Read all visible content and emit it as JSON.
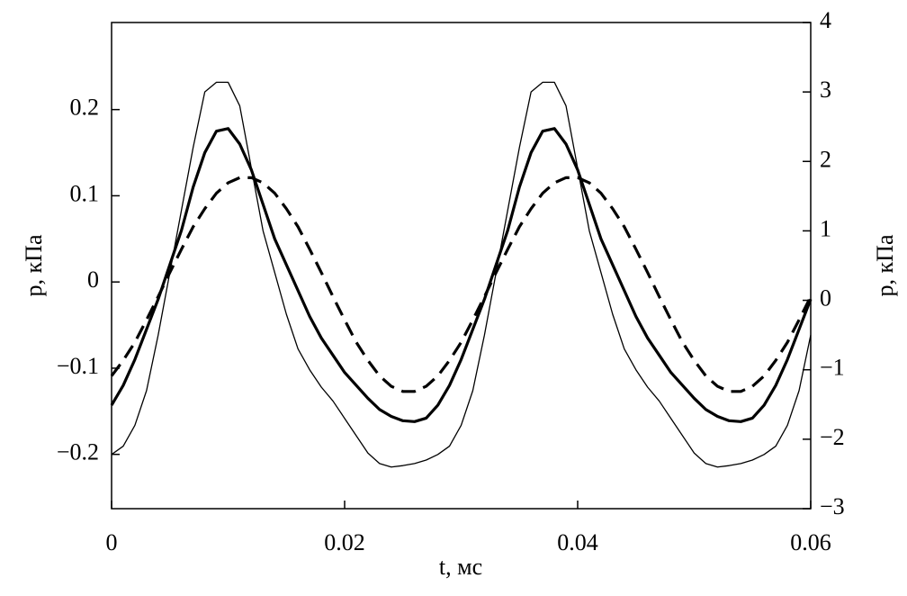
{
  "chart_data": {
    "type": "line",
    "x_label": "t, мс",
    "y_label": "p, кПа",
    "y2_label": "p, кПа",
    "xlim": [
      0,
      0.06
    ],
    "xticks": [
      0,
      0.02,
      0.04,
      0.06
    ],
    "ylim": [
      -0.263,
      0.301
    ],
    "yticks": [
      {
        "value": -0.2,
        "label": "−0.2"
      },
      {
        "value": -0.1,
        "label": "−0.1"
      },
      0,
      0.1,
      0.2
    ],
    "y2lim": [
      -3,
      4
    ],
    "y2ticks": [
      {
        "value": -3,
        "label": "−3"
      },
      {
        "value": -2,
        "label": "−2"
      },
      {
        "value": -1,
        "label": "−1"
      },
      0,
      1,
      2,
      3,
      4
    ],
    "x": [
      0,
      0.001,
      0.002,
      0.003,
      0.004,
      0.005,
      0.006,
      0.007,
      0.008,
      0.009,
      0.01,
      0.011,
      0.012,
      0.013,
      0.014,
      0.015,
      0.016,
      0.017,
      0.018,
      0.019,
      0.02,
      0.021,
      0.022,
      0.023,
      0.024,
      0.025,
      0.026,
      0.027,
      0.028,
      0.029,
      0.03,
      0.031,
      0.032,
      0.033,
      0.034,
      0.035,
      0.036,
      0.037,
      0.038,
      0.039,
      0.04,
      0.041,
      0.042,
      0.043,
      0.044,
      0.045,
      0.046,
      0.047,
      0.048,
      0.049,
      0.05,
      0.051,
      0.052,
      0.053,
      0.054,
      0.055,
      0.056,
      0.057,
      0.058,
      0.059,
      0.06
    ],
    "series": [
      {
        "color": "#000000",
        "width": 1.3,
        "dash": "none",
        "axis": "y2",
        "values": [
          -2.22,
          -2.1,
          -1.8,
          -1.3,
          -0.5,
          0.4,
          1.3,
          2.2,
          3.0,
          3.14,
          3.14,
          2.8,
          1.9,
          1.0,
          0.4,
          -0.2,
          -0.7,
          -1.0,
          -1.25,
          -1.45,
          -1.7,
          -1.95,
          -2.2,
          -2.35,
          -2.4,
          -2.38,
          -2.35,
          -2.3,
          -2.22,
          -2.1,
          -1.8,
          -1.3,
          -0.5,
          0.4,
          1.3,
          2.2,
          3.0,
          3.14,
          3.14,
          2.8,
          1.9,
          1.0,
          0.4,
          -0.2,
          -0.7,
          -1.0,
          -1.25,
          -1.45,
          -1.7,
          -1.95,
          -2.2,
          -2.35,
          -2.4,
          -2.38,
          -2.35,
          -2.3,
          -2.22,
          -2.1,
          -1.8,
          -1.3,
          -0.5
        ]
      },
      {
        "color": "#000000",
        "width": 3.2,
        "dash": "none",
        "axis": "y",
        "values": [
          -0.143,
          -0.12,
          -0.09,
          -0.055,
          -0.02,
          0.02,
          0.06,
          0.11,
          0.15,
          0.175,
          0.178,
          0.16,
          0.13,
          0.09,
          0.05,
          0.02,
          -0.01,
          -0.04,
          -0.065,
          -0.085,
          -0.105,
          -0.12,
          -0.135,
          -0.148,
          -0.156,
          -0.161,
          -0.162,
          -0.158,
          -0.143,
          -0.12,
          -0.09,
          -0.055,
          -0.02,
          0.02,
          0.06,
          0.11,
          0.15,
          0.175,
          0.178,
          0.16,
          0.13,
          0.09,
          0.05,
          0.02,
          -0.01,
          -0.04,
          -0.065,
          -0.085,
          -0.105,
          -0.12,
          -0.135,
          -0.148,
          -0.156,
          -0.161,
          -0.162,
          -0.158,
          -0.143,
          -0.12,
          -0.09,
          -0.055,
          -0.02
        ]
      },
      {
        "color": "#000000",
        "width": 3.2,
        "dash": "16 9",
        "axis": "y",
        "values": [
          -0.109,
          -0.091,
          -0.07,
          -0.044,
          -0.017,
          0.011,
          0.038,
          0.064,
          0.085,
          0.103,
          0.115,
          0.121,
          0.121,
          0.115,
          0.103,
          0.085,
          0.064,
          0.038,
          0.011,
          -0.017,
          -0.044,
          -0.07,
          -0.091,
          -0.109,
          -0.121,
          -0.127,
          -0.127,
          -0.121,
          -0.109,
          -0.091,
          -0.07,
          -0.044,
          -0.017,
          0.011,
          0.038,
          0.064,
          0.085,
          0.103,
          0.115,
          0.121,
          0.121,
          0.115,
          0.103,
          0.085,
          0.064,
          0.038,
          0.011,
          -0.017,
          -0.044,
          -0.07,
          -0.091,
          -0.109,
          -0.121,
          -0.127,
          -0.127,
          -0.121,
          -0.109,
          -0.091,
          -0.07,
          -0.044,
          -0.017
        ]
      }
    ]
  }
}
